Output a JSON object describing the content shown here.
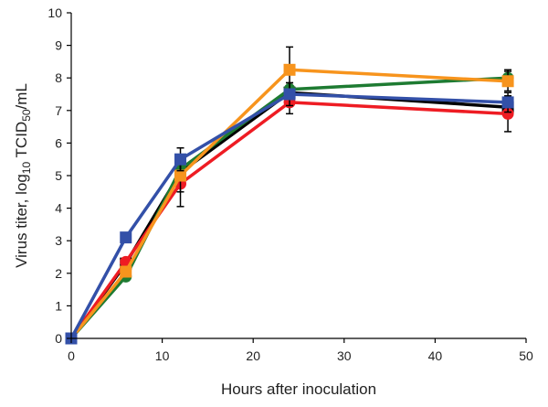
{
  "chart_data": {
    "type": "line",
    "xlabel": "Hours after inoculation",
    "ylabel": {
      "prefix": "Virus titer, log",
      "prefix_sub": "10",
      "middle": " TCID",
      "middle_sub": "50",
      "suffix": "/mL"
    },
    "xlim": [
      0,
      50
    ],
    "ylim": [
      0,
      10
    ],
    "xticks": [
      "0",
      "10",
      "20",
      "30",
      "40",
      "50"
    ],
    "yticks": [
      "0",
      "1",
      "2",
      "3",
      "4",
      "5",
      "6",
      "7",
      "8",
      "9",
      "10"
    ],
    "grid": false,
    "legend": false,
    "series": [
      {
        "color": "#000000",
        "marker": "square",
        "z": 1,
        "x": [
          0,
          6,
          12,
          24,
          48
        ],
        "y": [
          0,
          2.3,
          5.1,
          7.55,
          7.1
        ],
        "err": [
          0,
          0.1,
          0.3,
          0.15,
          0.15
        ]
      },
      {
        "color": "#1e7b32",
        "marker": "circle",
        "z": 2,
        "x": [
          0,
          6,
          12,
          24,
          48
        ],
        "y": [
          0,
          1.9,
          5.2,
          7.65,
          8.0
        ],
        "err": [
          0,
          0.1,
          0.25,
          0.2,
          0.25
        ]
      },
      {
        "color": "#ee1c23",
        "marker": "circle",
        "z": 3,
        "x": [
          0,
          6,
          12,
          24,
          48
        ],
        "y": [
          0,
          2.35,
          4.75,
          7.25,
          6.9
        ],
        "err": [
          0,
          0.1,
          0.7,
          0.35,
          0.55
        ]
      },
      {
        "color": "#f7941d",
        "marker": "square",
        "z": 4,
        "x": [
          0,
          6,
          12,
          24,
          48
        ],
        "y": [
          0,
          2.05,
          5.0,
          8.25,
          7.9
        ],
        "err": [
          0,
          0.15,
          0.5,
          0.7,
          0.3
        ]
      },
      {
        "color": "#3350a8",
        "marker": "square",
        "z": 5,
        "x": [
          0,
          6,
          12,
          24,
          48
        ],
        "y": [
          0,
          3.1,
          5.5,
          7.5,
          7.25
        ],
        "err": [
          0,
          0.1,
          0.35,
          0.35,
          0.3
        ]
      }
    ]
  }
}
